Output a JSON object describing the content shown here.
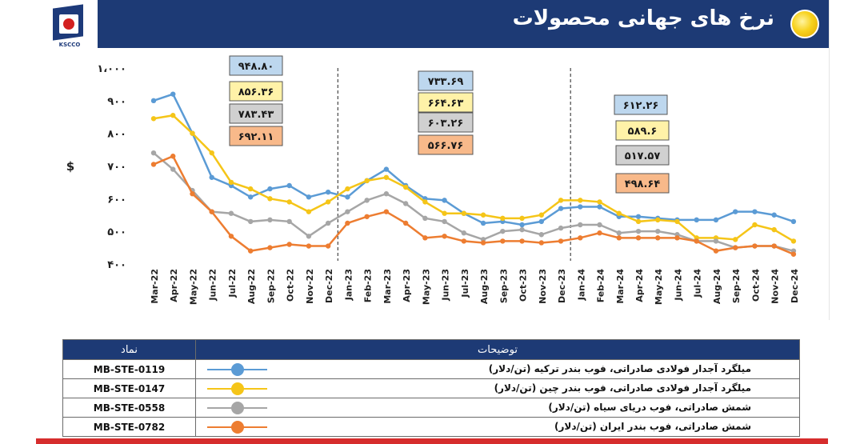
{
  "header": {
    "title": "نرخ های جهانی محصولات",
    "logo_text": "KSCCO"
  },
  "colors": {
    "title_bar": "#1d3a75",
    "series_colors": [
      "#5b9bd5",
      "#f5c518",
      "#a6a6a6",
      "#ed7d31"
    ]
  },
  "chart_data": {
    "type": "line",
    "ylabel": "$",
    "ylim": [
      400,
      1000
    ],
    "y_ticks": [
      "۴۰۰",
      "۵۰۰",
      "۶۰۰",
      "۷۰۰",
      "۸۰۰",
      "۹۰۰",
      "۱،۰۰۰"
    ],
    "categories": [
      "Mar-22",
      "Apr-22",
      "May-22",
      "Jun-22",
      "Jul-22",
      "Aug-22",
      "Sep-22",
      "Oct-22",
      "Nov-22",
      "Dec-22",
      "Jan-23",
      "Feb-23",
      "Mar-23",
      "Apr-23",
      "May-23",
      "Jun-23",
      "Jul-23",
      "Aug-23",
      "Sep-23",
      "Oct-23",
      "Nov-23",
      "Dec-23",
      "Jan-24",
      "Feb-24",
      "Mar-24",
      "Apr-24",
      "May-24",
      "Jun-24",
      "Jul-24",
      "Aug-24",
      "Sep-24",
      "Oct-24",
      "Nov-24",
      "Dec-24"
    ],
    "series": [
      {
        "values": [
          900,
          920,
          800,
          665,
          640,
          605,
          630,
          640,
          605,
          620,
          605,
          655,
          690,
          640,
          600,
          595,
          555,
          525,
          530,
          520,
          530,
          570,
          575,
          575,
          545,
          545,
          540,
          535,
          535,
          535,
          560,
          560,
          550,
          530
        ]
      },
      {
        "values": [
          845,
          855,
          800,
          740,
          650,
          630,
          600,
          590,
          560,
          590,
          630,
          655,
          665,
          635,
          590,
          555,
          555,
          550,
          540,
          540,
          550,
          595,
          595,
          590,
          555,
          530,
          535,
          530,
          480,
          480,
          475,
          520,
          505,
          470
        ]
      },
      {
        "values": [
          740,
          690,
          625,
          560,
          555,
          530,
          535,
          530,
          485,
          525,
          560,
          595,
          615,
          585,
          540,
          530,
          495,
          475,
          500,
          505,
          490,
          510,
          520,
          520,
          495,
          500,
          500,
          490,
          470,
          470,
          450,
          455,
          455,
          440
        ]
      },
      {
        "values": [
          705,
          730,
          615,
          560,
          485,
          440,
          450,
          460,
          455,
          455,
          525,
          545,
          560,
          525,
          480,
          485,
          470,
          465,
          470,
          470,
          465,
          470,
          480,
          495,
          480,
          480,
          480,
          480,
          470,
          440,
          450,
          455,
          455,
          430
        ]
      }
    ],
    "period_labels": [
      [
        "۹۴۸.۸۰",
        "۸۵۶.۳۶",
        "۷۸۳.۴۳",
        "۶۹۲.۱۱"
      ],
      [
        "۷۳۳.۶۹",
        "۶۶۴.۶۳",
        "۶۰۳.۲۶",
        "۵۶۶.۷۶"
      ],
      [
        "۶۱۲.۲۶",
        "۵۸۹.۶",
        "۵۱۷.۵۷",
        "۴۹۸.۶۴"
      ]
    ],
    "grid": false
  },
  "legend": {
    "header_symbol": "نماد",
    "header_description": "توضیحات",
    "rows": [
      {
        "symbol": "MB-STE-0119",
        "description": "میلگرد آجدار فولادی صادراتی، فوب بندر ترکیه (تن/دلار)"
      },
      {
        "symbol": "MB-STE-0147",
        "description": "میلگرد آجدار فولادی صادراتی، فوب بندر چین (تن/دلار)"
      },
      {
        "symbol": "MB-STE-0558",
        "description": "شمش صادراتی، فوب دریای سیاه (تن/دلار)"
      },
      {
        "symbol": "MB-STE-0782",
        "description": "شمش صادراتی، فوب بندر ایران (تن/دلار)"
      }
    ]
  }
}
